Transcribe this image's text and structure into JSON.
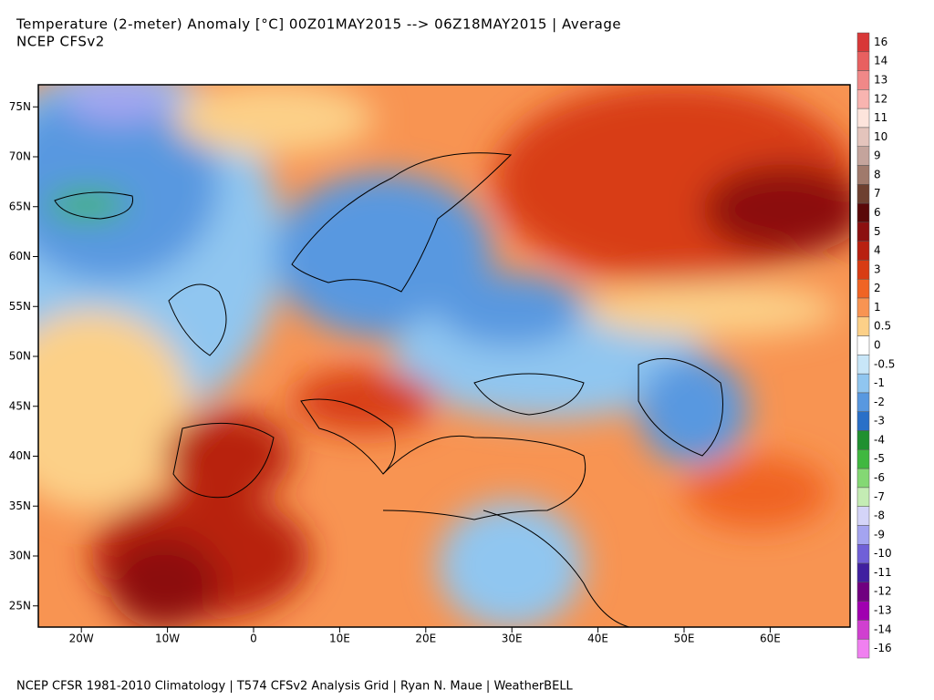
{
  "header": {
    "title": "Temperature (2-meter) Anomaly  [°C] 00Z01MAY2015 --> 06Z18MAY2015 | Average",
    "subtitle": "NCEP CFSv2"
  },
  "map": {
    "lat_ticks": [
      {
        "value": 75,
        "label": "75N"
      },
      {
        "value": 70,
        "label": "70N"
      },
      {
        "value": 65,
        "label": "65N"
      },
      {
        "value": 60,
        "label": "60N"
      },
      {
        "value": 55,
        "label": "55N"
      },
      {
        "value": 50,
        "label": "50N"
      },
      {
        "value": 45,
        "label": "45N"
      },
      {
        "value": 40,
        "label": "40N"
      },
      {
        "value": 35,
        "label": "35N"
      },
      {
        "value": 30,
        "label": "30N"
      },
      {
        "value": 25,
        "label": "25N"
      }
    ],
    "lon_ticks": [
      {
        "value": -20,
        "label": "20W"
      },
      {
        "value": -10,
        "label": "10W"
      },
      0,
      {
        "value": 10,
        "label": "10E"
      },
      {
        "value": 20,
        "label": "20E"
      },
      {
        "value": 30,
        "label": "30E"
      },
      {
        "value": 40,
        "label": "40E"
      },
      {
        "value": 50,
        "label": "50E"
      },
      {
        "value": 60,
        "label": "60E"
      }
    ]
  },
  "legend": {
    "values": [
      16,
      14,
      13,
      12,
      11,
      10,
      9,
      8,
      7,
      6,
      5,
      4,
      3,
      2,
      1,
      0.5,
      0,
      -0.5,
      -1,
      -2,
      -3,
      -4,
      -5,
      -6,
      -7,
      -8,
      -9,
      -10,
      -11,
      -12,
      -13,
      -14,
      -16
    ],
    "colors": [
      "#d83838",
      "#e86060",
      "#f08888",
      "#f8b4b0",
      "#fde4dc",
      "#e4c4bc",
      "#c4a49c",
      "#a07a6c",
      "#6e4030",
      "#5a0808",
      "#8c1010",
      "#b82010",
      "#d83c14",
      "#f06424",
      "#f89452",
      "#fcd088",
      "#ffffff",
      "#c8e6f8",
      "#90c6f0",
      "#5898e0",
      "#2a70c8",
      "#209030",
      "#40b840",
      "#84d874",
      "#c4ecb4",
      "#d4d4f8",
      "#a4a4f0",
      "#7060d8",
      "#4020a0",
      "#700080",
      "#a000b0",
      "#d040d0",
      "#f080f0"
    ]
  },
  "footer": "NCEP CFSR 1981-2010 Climatology | T574 CFSv2 Analysis Grid | Ryan N. Maue | WeatherBELL"
}
